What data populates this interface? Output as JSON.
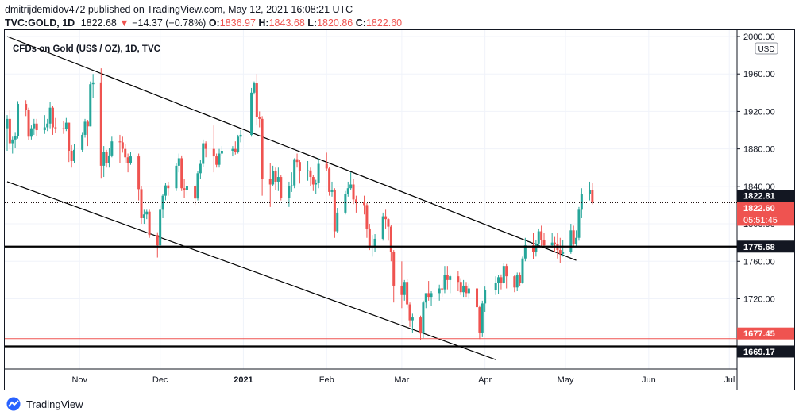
{
  "header": {
    "publisher_line": "dmitrijdemidov472 published on TradingView.com, May 12, 2021 16:08:21 UTC",
    "symbol": "TVC:GOLD, 1D",
    "last": "1822.68",
    "change_arrow": "▼",
    "change": "−14.37 (−0.78%)",
    "open_label": "O:",
    "open": "1836.97",
    "high_label": "H:",
    "high": "1843.68",
    "low_label": "L:",
    "low": "1820.86",
    "close_label": "C:",
    "close": "1822.60"
  },
  "footer": {
    "brand": "TradingView"
  },
  "colors": {
    "up": "#26a69a",
    "down": "#ef5350",
    "text": "#131722",
    "grid": "#f0f3fa",
    "price_tag_red": "#ef5350",
    "line": "#000000"
  },
  "chart_data": {
    "type": "candlestick",
    "title": "CFDs on Gold (US$ / OZ), 1D, TVC",
    "currency": "USD",
    "ylim": [
      1645,
      2000
    ],
    "yticks": [
      "2000.00",
      "1960.00",
      "1920.00",
      "1880.00",
      "1840.00",
      "1800.00",
      "1760.00",
      "1720.00",
      "1680.00"
    ],
    "xticks": [
      {
        "label": "Nov",
        "date": "2020-11-01",
        "bold": false
      },
      {
        "label": "Dec",
        "date": "2020-12-01",
        "bold": false
      },
      {
        "label": "2021",
        "date": "2021-01-01",
        "bold": true
      },
      {
        "label": "Feb",
        "date": "2021-02-01",
        "bold": false
      },
      {
        "label": "Mar",
        "date": "2021-03-01",
        "bold": false
      },
      {
        "label": "Apr",
        "date": "2021-04-01",
        "bold": false
      },
      {
        "label": "May",
        "date": "2021-05-01",
        "bold": false
      },
      {
        "label": "Jun",
        "date": "2021-06-01",
        "bold": false
      },
      {
        "label": "Jul",
        "date": "2021-07-01",
        "bold": false
      }
    ],
    "x_start": "2020-10-05",
    "x_end": "2021-07-03",
    "horizontal_levels": [
      {
        "value": 1822.81,
        "label": "1822.81",
        "style": "dotted",
        "tag": "black"
      },
      {
        "value": 1822.6,
        "label": "1822.60",
        "sublabel": "05:51:45",
        "style": "dotted-red",
        "tag": "red"
      },
      {
        "value": 1775.68,
        "label": "1775.68",
        "style": "thick",
        "tag": "black"
      },
      {
        "value": 1677.45,
        "label": "1677.45",
        "style": "thin-red",
        "tag": "red"
      },
      {
        "value": 1669.17,
        "label": "1669.17",
        "style": "thick",
        "tag": "black"
      }
    ],
    "trend_lines": [
      {
        "from": {
          "date": "2020-10-05",
          "value": 2000
        },
        "to": {
          "date": "2021-05-05",
          "value": 1761
        }
      },
      {
        "from": {
          "date": "2020-10-05",
          "value": 1845
        },
        "to": {
          "date": "2021-04-05",
          "value": 1655
        }
      }
    ],
    "candles": [
      [
        "2020-10-05",
        1902,
        1916,
        1878,
        1912
      ],
      [
        "2020-10-06",
        1912,
        1922,
        1880,
        1886
      ],
      [
        "2020-10-07",
        1886,
        1893,
        1875,
        1890
      ],
      [
        "2020-10-08",
        1890,
        1898,
        1881,
        1894
      ],
      [
        "2020-10-09",
        1894,
        1931,
        1891,
        1928
      ],
      [
        "2020-10-12",
        1928,
        1932,
        1915,
        1922
      ],
      [
        "2020-10-13",
        1922,
        1924,
        1889,
        1893
      ],
      [
        "2020-10-14",
        1893,
        1905,
        1890,
        1902
      ],
      [
        "2020-10-15",
        1902,
        1912,
        1895,
        1907
      ],
      [
        "2020-10-16",
        1907,
        1912,
        1894,
        1900
      ],
      [
        "2020-10-19",
        1900,
        1916,
        1896,
        1903
      ],
      [
        "2020-10-20",
        1903,
        1912,
        1899,
        1907
      ],
      [
        "2020-10-21",
        1907,
        1930,
        1902,
        1924
      ],
      [
        "2020-10-22",
        1924,
        1926,
        1895,
        1903
      ],
      [
        "2020-10-23",
        1903,
        1913,
        1897,
        1902
      ],
      [
        "2020-10-26",
        1902,
        1910,
        1896,
        1901
      ],
      [
        "2020-10-27",
        1901,
        1913,
        1899,
        1908
      ],
      [
        "2020-10-28",
        1908,
        1908,
        1866,
        1878
      ],
      [
        "2020-10-29",
        1878,
        1884,
        1860,
        1867
      ],
      [
        "2020-10-30",
        1867,
        1885,
        1865,
        1879
      ],
      [
        "2020-11-02",
        1879,
        1898,
        1877,
        1895
      ],
      [
        "2020-11-03",
        1895,
        1912,
        1892,
        1909
      ],
      [
        "2020-11-04",
        1909,
        1911,
        1883,
        1904
      ],
      [
        "2020-11-05",
        1904,
        1952,
        1904,
        1949
      ],
      [
        "2020-11-06",
        1949,
        1960,
        1934,
        1951
      ],
      [
        "2020-11-09",
        1951,
        1966,
        1849,
        1862
      ],
      [
        "2020-11-10",
        1862,
        1883,
        1850,
        1877
      ],
      [
        "2020-11-11",
        1877,
        1879,
        1860,
        1865
      ],
      [
        "2020-11-12",
        1865,
        1881,
        1860,
        1873
      ],
      [
        "2020-11-13",
        1873,
        1893,
        1871,
        1888
      ],
      [
        "2020-11-16",
        1888,
        1895,
        1865,
        1887
      ],
      [
        "2020-11-17",
        1887,
        1893,
        1876,
        1880
      ],
      [
        "2020-11-18",
        1880,
        1885,
        1865,
        1871
      ],
      [
        "2020-11-19",
        1871,
        1875,
        1855,
        1865
      ],
      [
        "2020-11-20",
        1865,
        1877,
        1863,
        1872
      ],
      [
        "2020-11-23",
        1872,
        1875,
        1825,
        1837
      ],
      [
        "2020-11-24",
        1837,
        1840,
        1800,
        1806
      ],
      [
        "2020-11-25",
        1806,
        1815,
        1800,
        1810
      ],
      [
        "2020-11-26",
        1810,
        1815,
        1805,
        1813
      ],
      [
        "2020-11-27",
        1813,
        1815,
        1785,
        1788
      ],
      [
        "2020-11-30",
        1788,
        1791,
        1764,
        1777
      ],
      [
        "2020-12-01",
        1777,
        1820,
        1775,
        1815
      ],
      [
        "2020-12-02",
        1815,
        1832,
        1806,
        1830
      ],
      [
        "2020-12-03",
        1830,
        1844,
        1825,
        1841
      ],
      [
        "2020-12-04",
        1841,
        1845,
        1830,
        1838
      ],
      [
        "2020-12-07",
        1838,
        1865,
        1835,
        1862
      ],
      [
        "2020-12-08",
        1862,
        1875,
        1855,
        1870
      ],
      [
        "2020-12-09",
        1870,
        1873,
        1835,
        1838
      ],
      [
        "2020-12-10",
        1838,
        1848,
        1828,
        1836
      ],
      [
        "2020-12-11",
        1836,
        1845,
        1830,
        1840
      ],
      [
        "2020-12-14",
        1840,
        1842,
        1820,
        1827
      ],
      [
        "2020-12-15",
        1827,
        1856,
        1825,
        1854
      ],
      [
        "2020-12-16",
        1854,
        1868,
        1848,
        1864
      ],
      [
        "2020-12-17",
        1864,
        1890,
        1861,
        1886
      ],
      [
        "2020-12-18",
        1886,
        1888,
        1871,
        1880
      ],
      [
        "2020-12-21",
        1880,
        1905,
        1855,
        1872
      ],
      [
        "2020-12-22",
        1872,
        1875,
        1860,
        1863
      ],
      [
        "2020-12-23",
        1863,
        1880,
        1860,
        1875
      ],
      [
        "2020-12-24",
        1875,
        1883,
        1872,
        1878
      ],
      [
        "2020-12-28",
        1878,
        1883,
        1872,
        1880
      ],
      [
        "2020-12-29",
        1880,
        1888,
        1874,
        1877
      ],
      [
        "2020-12-30",
        1877,
        1895,
        1875,
        1893
      ],
      [
        "2020-12-31",
        1893,
        1900,
        1887,
        1895
      ],
      [
        "2021-01-04",
        1895,
        1945,
        1893,
        1940
      ],
      [
        "2021-01-05",
        1940,
        1952,
        1938,
        1950
      ],
      [
        "2021-01-06",
        1950,
        1960,
        1905,
        1914
      ],
      [
        "2021-01-07",
        1914,
        1920,
        1903,
        1912
      ],
      [
        "2021-01-08",
        1912,
        1915,
        1830,
        1848
      ],
      [
        "2021-01-11",
        1848,
        1865,
        1818,
        1842
      ],
      [
        "2021-01-12",
        1842,
        1862,
        1840,
        1856
      ],
      [
        "2021-01-13",
        1856,
        1860,
        1836,
        1845
      ],
      [
        "2021-01-14",
        1845,
        1860,
        1835,
        1850
      ],
      [
        "2021-01-15",
        1850,
        1852,
        1825,
        1828
      ],
      [
        "2021-01-18",
        1828,
        1845,
        1818,
        1840
      ],
      [
        "2021-01-19",
        1840,
        1855,
        1834,
        1841
      ],
      [
        "2021-01-20",
        1841,
        1870,
        1838,
        1869
      ],
      [
        "2021-01-21",
        1869,
        1875,
        1860,
        1866
      ],
      [
        "2021-01-22",
        1866,
        1868,
        1843,
        1856
      ],
      [
        "2021-01-25",
        1856,
        1867,
        1846,
        1857
      ],
      [
        "2021-01-26",
        1857,
        1860,
        1840,
        1850
      ],
      [
        "2021-01-27",
        1850,
        1852,
        1835,
        1842
      ],
      [
        "2021-01-28",
        1842,
        1847,
        1832,
        1844
      ],
      [
        "2021-01-29",
        1844,
        1870,
        1838,
        1864
      ],
      [
        "2021-02-01",
        1864,
        1876,
        1856,
        1859
      ],
      [
        "2021-02-02",
        1859,
        1861,
        1830,
        1834
      ],
      [
        "2021-02-03",
        1834,
        1845,
        1829,
        1836
      ],
      [
        "2021-02-04",
        1836,
        1838,
        1785,
        1792
      ],
      [
        "2021-02-05",
        1792,
        1817,
        1790,
        1812
      ],
      [
        "2021-02-08",
        1812,
        1835,
        1810,
        1832
      ],
      [
        "2021-02-09",
        1832,
        1845,
        1829,
        1838
      ],
      [
        "2021-02-10",
        1838,
        1855,
        1836,
        1842
      ],
      [
        "2021-02-11",
        1842,
        1848,
        1821,
        1826
      ],
      [
        "2021-02-12",
        1826,
        1830,
        1812,
        1823
      ],
      [
        "2021-02-15",
        1823,
        1830,
        1810,
        1820
      ],
      [
        "2021-02-16",
        1820,
        1822,
        1785,
        1795
      ],
      [
        "2021-02-17",
        1795,
        1800,
        1772,
        1776
      ],
      [
        "2021-02-18",
        1776,
        1788,
        1765,
        1776
      ],
      [
        "2021-02-19",
        1776,
        1789,
        1770,
        1784
      ],
      [
        "2021-02-22",
        1784,
        1812,
        1782,
        1808
      ],
      [
        "2021-02-23",
        1808,
        1815,
        1795,
        1805
      ],
      [
        "2021-02-24",
        1805,
        1806,
        1782,
        1797
      ],
      [
        "2021-02-25",
        1797,
        1799,
        1760,
        1770
      ],
      [
        "2021-02-26",
        1770,
        1772,
        1716,
        1734
      ],
      [
        "2021-03-01",
        1734,
        1760,
        1710,
        1724
      ],
      [
        "2021-03-02",
        1724,
        1740,
        1718,
        1738
      ],
      [
        "2021-03-03",
        1738,
        1741,
        1710,
        1714
      ],
      [
        "2021-03-04",
        1714,
        1716,
        1690,
        1697
      ],
      [
        "2021-03-05",
        1697,
        1704,
        1684,
        1700
      ],
      [
        "2021-03-08",
        1700,
        1702,
        1676,
        1683
      ],
      [
        "2021-03-09",
        1683,
        1718,
        1678,
        1716
      ],
      [
        "2021-03-10",
        1716,
        1726,
        1710,
        1726
      ],
      [
        "2021-03-11",
        1726,
        1739,
        1718,
        1722
      ],
      [
        "2021-03-12",
        1722,
        1728,
        1712,
        1726
      ],
      [
        "2021-03-15",
        1726,
        1735,
        1718,
        1731
      ],
      [
        "2021-03-16",
        1731,
        1740,
        1722,
        1730
      ],
      [
        "2021-03-17",
        1730,
        1755,
        1726,
        1745
      ],
      [
        "2021-03-18",
        1745,
        1755,
        1730,
        1740
      ],
      [
        "2021-03-19",
        1740,
        1746,
        1726,
        1744
      ],
      [
        "2021-03-22",
        1744,
        1750,
        1728,
        1738
      ],
      [
        "2021-03-23",
        1738,
        1742,
        1724,
        1727
      ],
      [
        "2021-03-24",
        1727,
        1740,
        1722,
        1734
      ],
      [
        "2021-03-25",
        1734,
        1738,
        1722,
        1726
      ],
      [
        "2021-03-26",
        1726,
        1736,
        1720,
        1731
      ],
      [
        "2021-03-29",
        1731,
        1734,
        1705,
        1711
      ],
      [
        "2021-03-30",
        1711,
        1713,
        1677,
        1684
      ],
      [
        "2021-03-31",
        1684,
        1718,
        1679,
        1715
      ],
      [
        "2021-04-01",
        1715,
        1733,
        1706,
        1729
      ],
      [
        "2021-04-05",
        1729,
        1744,
        1724,
        1737
      ],
      [
        "2021-04-06",
        1737,
        1745,
        1725,
        1743
      ],
      [
        "2021-04-07",
        1743,
        1746,
        1730,
        1737
      ],
      [
        "2021-04-08",
        1737,
        1758,
        1736,
        1755
      ],
      [
        "2021-04-09",
        1755,
        1757,
        1731,
        1744
      ],
      [
        "2021-04-12",
        1744,
        1745,
        1727,
        1732
      ],
      [
        "2021-04-13",
        1732,
        1748,
        1728,
        1745
      ],
      [
        "2021-04-14",
        1745,
        1748,
        1734,
        1737
      ],
      [
        "2021-04-15",
        1737,
        1765,
        1736,
        1763
      ],
      [
        "2021-04-16",
        1763,
        1785,
        1760,
        1777
      ],
      [
        "2021-04-19",
        1777,
        1790,
        1762,
        1770
      ],
      [
        "2021-04-20",
        1770,
        1783,
        1765,
        1779
      ],
      [
        "2021-04-21",
        1779,
        1795,
        1775,
        1792
      ],
      [
        "2021-04-22",
        1792,
        1798,
        1775,
        1783
      ],
      [
        "2021-04-23",
        1783,
        1790,
        1775,
        1777
      ],
      [
        "2021-04-26",
        1777,
        1790,
        1774,
        1780
      ],
      [
        "2021-04-27",
        1780,
        1786,
        1770,
        1778
      ],
      [
        "2021-04-28",
        1778,
        1790,
        1763,
        1772
      ],
      [
        "2021-04-29",
        1772,
        1785,
        1758,
        1768
      ],
      [
        "2021-04-30",
        1768,
        1783,
        1765,
        1770
      ],
      [
        "2021-05-03",
        1770,
        1800,
        1768,
        1793
      ],
      [
        "2021-05-04",
        1793,
        1798,
        1775,
        1778
      ],
      [
        "2021-05-05",
        1778,
        1793,
        1776,
        1785
      ],
      [
        "2021-05-06",
        1785,
        1818,
        1782,
        1815
      ],
      [
        "2021-05-07",
        1815,
        1838,
        1806,
        1832
      ],
      [
        "2021-05-10",
        1832,
        1845,
        1825,
        1836
      ],
      [
        "2021-05-11",
        1836,
        1843.68,
        1820.86,
        1822.6
      ]
    ]
  }
}
